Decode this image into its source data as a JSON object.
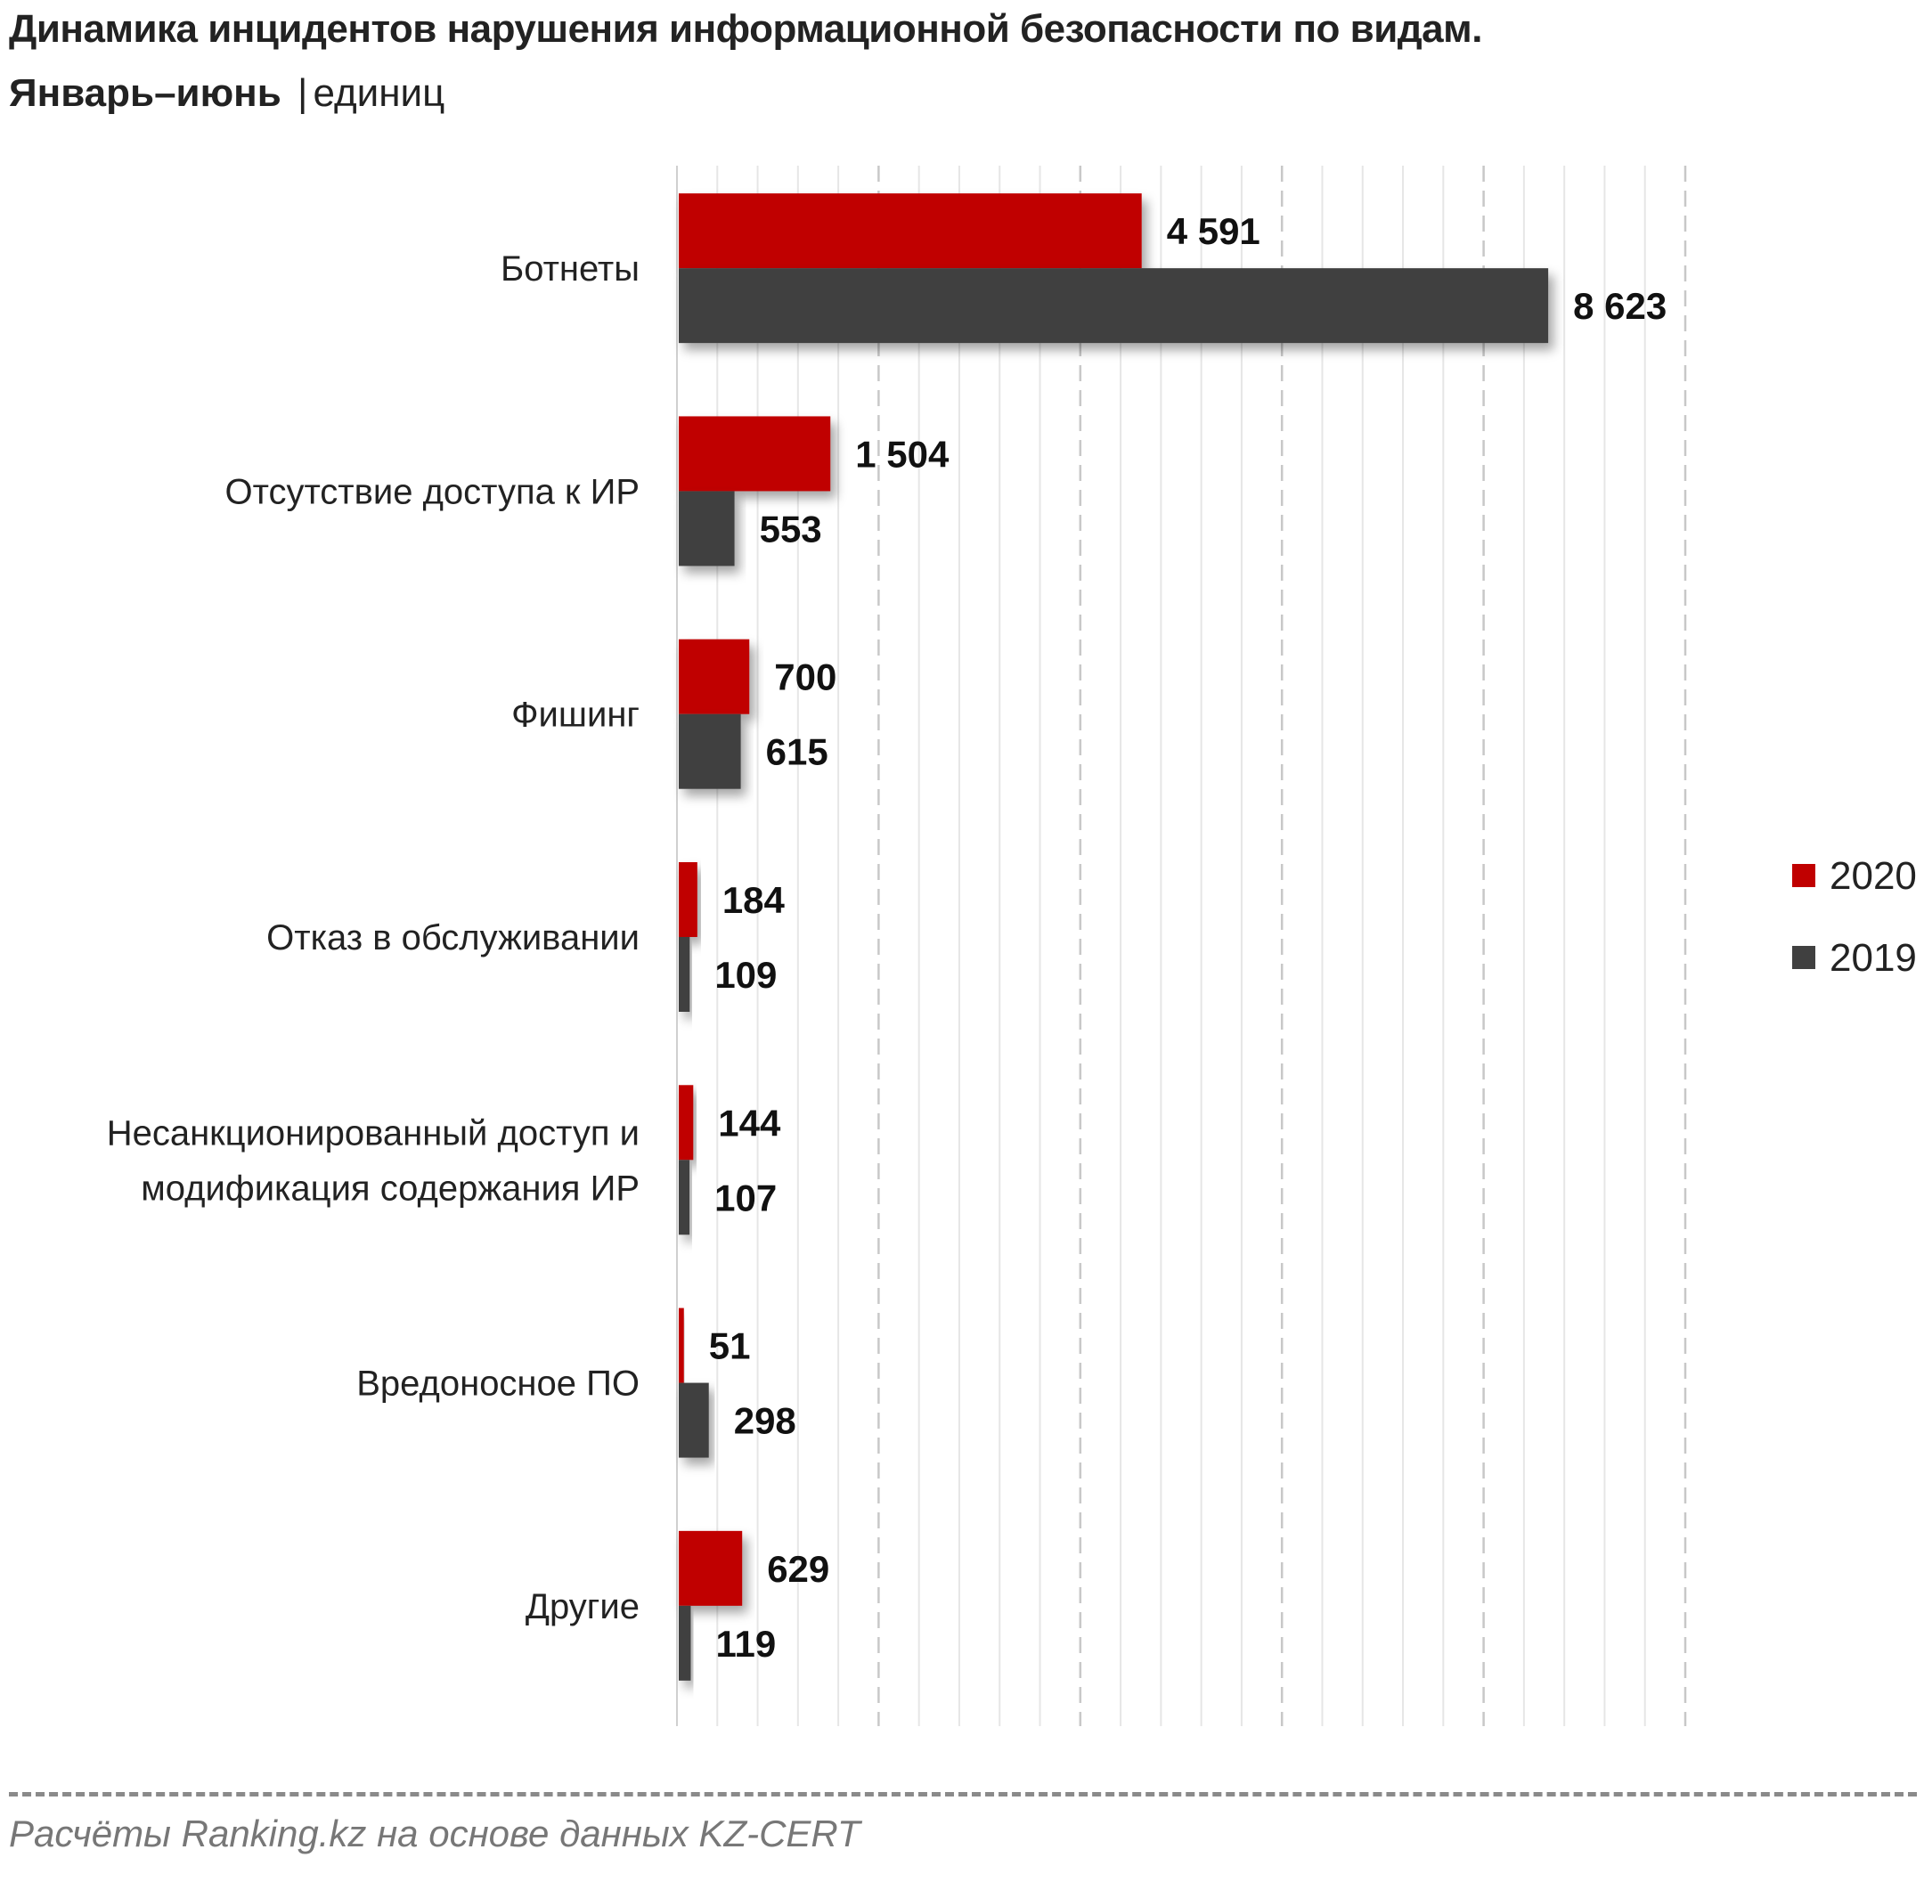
{
  "chart_data": {
    "type": "bar",
    "orientation": "horizontal",
    "title": "Динамика инцидентов нарушения информационной безопасности по видам.",
    "subtitle_bold": "Январь–июнь",
    "subtitle_separator": "|",
    "unit": "единиц",
    "categories": [
      [
        "Ботнеты"
      ],
      [
        "Отсутствие доступа к ИР"
      ],
      [
        "Фишинг"
      ],
      [
        "Отказ в обслуживании"
      ],
      [
        "Несанкционированный доступ и",
        "модификация содержания ИР"
      ],
      [
        "Вредоносное ПО"
      ],
      [
        "Другие"
      ]
    ],
    "series": [
      {
        "name": "2020",
        "color": "#c00000",
        "values": [
          4591,
          1504,
          700,
          184,
          144,
          51,
          629
        ],
        "labels": [
          "4 591",
          "1 504",
          "700",
          "184",
          "144",
          "51",
          "629"
        ]
      },
      {
        "name": "2019",
        "color": "#404040",
        "values": [
          8623,
          553,
          615,
          109,
          107,
          298,
          119
        ],
        "labels": [
          "8 623",
          "553",
          "615",
          "109",
          "107",
          "298",
          "119"
        ]
      }
    ],
    "xlim": [
      0,
      10000
    ],
    "grid": true,
    "legend": "right",
    "axis_tick_labels_shown": false
  },
  "footer": {
    "source": "Расчёты Ranking.kz на основе данных KZ-CERT"
  }
}
